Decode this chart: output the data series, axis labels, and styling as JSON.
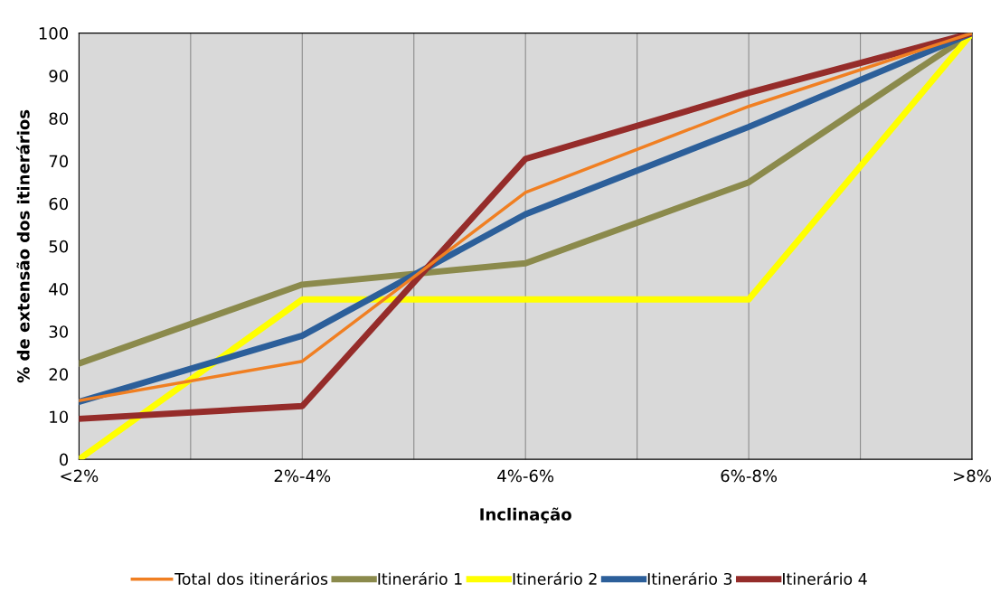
{
  "chart_data": {
    "type": "line",
    "xlabel": "Inclinação",
    "ylabel": "% de extensão dos itinerários",
    "categories": [
      "<2%",
      "2%-4%",
      "4%-6%",
      "6%-8%",
      ">8%"
    ],
    "ylim": [
      0,
      100
    ],
    "yticks": [
      0,
      10,
      20,
      30,
      40,
      50,
      60,
      70,
      80,
      90,
      100
    ],
    "grid": "x",
    "legend": "bottom",
    "marker": "none",
    "series": [
      {
        "name": "Total dos itinerários",
        "color": "#f07f22",
        "values": [
          13.8,
          23,
          62.6,
          82.8,
          100
        ]
      },
      {
        "name": "Itinerário 1",
        "color": "#8b8a4c",
        "values": [
          22.5,
          41,
          46,
          65,
          100
        ]
      },
      {
        "name": "Itinerário 2",
        "color": "#ffff00",
        "values": [
          0,
          37.5,
          37.5,
          37.5,
          100
        ]
      },
      {
        "name": "Itinerário 3",
        "color": "#2c5f9a",
        "values": [
          13.5,
          29,
          57.5,
          78,
          100
        ]
      },
      {
        "name": "Itinerário 4",
        "color": "#952c2a",
        "values": [
          9.5,
          12.5,
          70.5,
          86,
          100
        ]
      }
    ]
  }
}
